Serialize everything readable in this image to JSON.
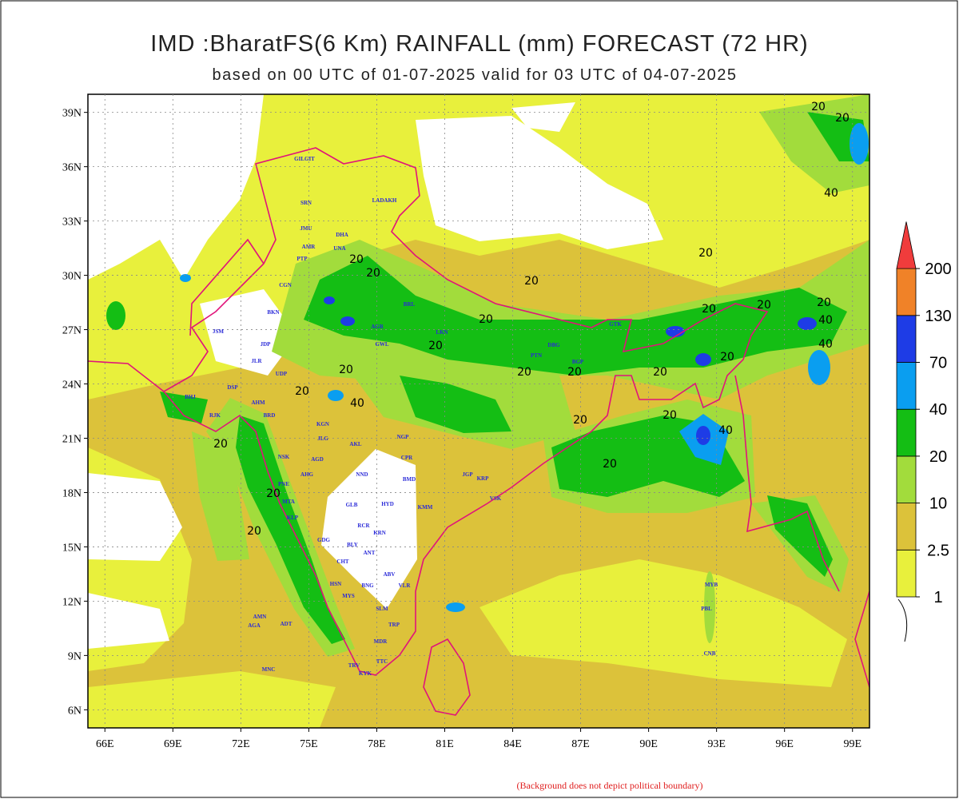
{
  "title": "IMD :BharatFS(6 Km) RAINFALL (mm) FORECAST (72 HR)",
  "subtitle": "based on 00 UTC of 01-07-2025 valid for 03 UTC of 04-07-2025",
  "map": {
    "xlim": [
      65.25,
      99.75
    ],
    "ylim": [
      5,
      40
    ],
    "xticks": [
      {
        "value": 66,
        "label": "66E"
      },
      {
        "value": 69,
        "label": "69E"
      },
      {
        "value": 72,
        "label": "72E"
      },
      {
        "value": 75,
        "label": "75E"
      },
      {
        "value": 78,
        "label": "78E"
      },
      {
        "value": 81,
        "label": "81E"
      },
      {
        "value": 84,
        "label": "84E"
      },
      {
        "value": 87,
        "label": "87E"
      },
      {
        "value": 90,
        "label": "90E"
      },
      {
        "value": 93,
        "label": "93E"
      },
      {
        "value": 96,
        "label": "96E"
      },
      {
        "value": 99,
        "label": "99E"
      }
    ],
    "yticks": [
      {
        "value": 6,
        "label": "6N"
      },
      {
        "value": 9,
        "label": "9N"
      },
      {
        "value": 12,
        "label": "12N"
      },
      {
        "value": 15,
        "label": "15N"
      },
      {
        "value": 18,
        "label": "18N"
      },
      {
        "value": 21,
        "label": "21N"
      },
      {
        "value": 24,
        "label": "24N"
      },
      {
        "value": 27,
        "label": "27N"
      },
      {
        "value": 30,
        "label": "30N"
      },
      {
        "value": 33,
        "label": "33N"
      },
      {
        "value": 36,
        "label": "36N"
      },
      {
        "value": 39,
        "label": "39N"
      }
    ],
    "grid": true
  },
  "legend": {
    "levels": [
      1,
      2.5,
      10,
      20,
      40,
      70,
      130,
      200
    ],
    "colors": [
      "#e8f03c",
      "#dcc23a",
      "#a2dc3c",
      "#14be14",
      "#0a9ef0",
      "#1e3ce6",
      "#f08228",
      "#f03c3c"
    ]
  },
  "stations": [
    "GILGIT",
    "LADAKH",
    "SRN",
    "JMU",
    "AMR",
    "PTP",
    "DHA",
    "UNA",
    "CGN",
    "BKN",
    "JSM",
    "JDP",
    "JLR",
    "UDP",
    "BHJ",
    "DSP",
    "RJK",
    "AHM",
    "BRD",
    "KGN",
    "JLG",
    "AKL",
    "NGP",
    "CPR",
    "AGD",
    "NSK",
    "AHG",
    "PNE",
    "MTA",
    "KLP",
    "GLB",
    "HYD",
    "NND",
    "BMD",
    "KMM",
    "GDG",
    "BLY",
    "ANT",
    "RCR",
    "KRN",
    "CHT",
    "MYS",
    "HSN",
    "BNG",
    "ABV",
    "VLR",
    "SLM",
    "TRP",
    "MDR",
    "TRV",
    "KYK",
    "TTC",
    "AGA",
    "AMN",
    "ADT",
    "MNC",
    "LKN",
    "PTN",
    "DBG",
    "GWL",
    "AGR",
    "BRL",
    "GTK",
    "BGP",
    "VSK",
    "PBL",
    "CNB",
    "MYB",
    "KRP",
    "JGP"
  ],
  "contour_labels": [
    "20",
    "20",
    "40",
    "20",
    "20",
    "20",
    "20",
    "40",
    "20",
    "20",
    "20",
    "20",
    "20",
    "20",
    "40",
    "20",
    "20",
    "20",
    "20",
    "40",
    "20",
    "20",
    "20",
    "20",
    "40",
    "20",
    "20",
    "20"
  ],
  "note": "(Background does not depict political boundary)"
}
